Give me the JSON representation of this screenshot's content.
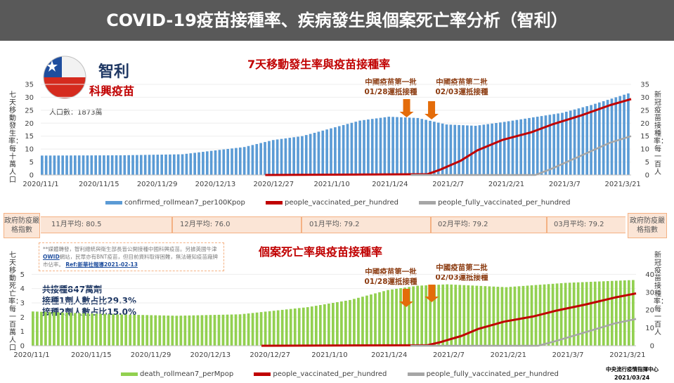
{
  "title": "COVID-19疫苗接種率、疾病發生與個案死亡率分析（智利）",
  "country": {
    "name": "智利",
    "vaccine": "科興疫苗",
    "population": "人口數：1873萬",
    "flag_icon": "chile-flag-icon"
  },
  "colors": {
    "cases": "#5b9bd5",
    "deaths": "#92d050",
    "vacc": "#c00000",
    "full": "#a6a6a6",
    "policy_fill": "#fbe5d6",
    "policy_border": "#f4b183"
  },
  "annotations": {
    "first_batch": [
      "中國疫苗第一批",
      "01/28運抵接種"
    ],
    "second_batch": [
      "中國疫苗第二批",
      "02/03運抵接種"
    ]
  },
  "policy": {
    "label_left": "政府防疫嚴格指數",
    "label_right": "政府防疫嚴格指數",
    "months": [
      "11月平均: 80.5",
      "12月平均: 76.0",
      "01月平均: 79.2",
      "02月平均: 79.2",
      "03月平均: 79.2"
    ]
  },
  "note": {
    "pre": "**媒體轉發，智利總統與衛生部長皆公開接種中國科興疫苗。另據英國牛津",
    "link": "OWID",
    "post": "網站，民眾亦有BNT疫苗，但目前資料取得困難，無法確知疫苗廠牌市佔率。",
    "source": "Ref:新華社報導2021-02-13"
  },
  "stats": [
    "共接種847萬劑",
    "接種1劑人數占比29.3%",
    "接種2劑人數占比15.0%"
  ],
  "footer": {
    "org": "中央流行疫情指揮中心",
    "date": "2021/03/24"
  },
  "chart_data": [
    {
      "type": "bar",
      "title": "7天移動發生率與疫苗接種率",
      "ylabel_left": "七天移動發生率：每十萬人口",
      "ylabel_right": "新冠疫苗接種率：每一百人",
      "x_start": "2020-11-01",
      "x_end": "2021-03-23",
      "x_ticks": [
        "2020/11/1",
        "2020/11/15",
        "2020/11/29",
        "2020/12/13",
        "2020/12/27",
        "2021/1/10",
        "2021/1/24",
        "2021/2/7",
        "2021/2/21",
        "2021/3/7",
        "2021/3/21"
      ],
      "ylim_left": [
        0,
        35
      ],
      "yticks_left": [
        0,
        5,
        10,
        15,
        20,
        25,
        30,
        35
      ],
      "ylim_right": [
        0,
        35
      ],
      "yticks_right": [
        0,
        5,
        10,
        15,
        20,
        25,
        30,
        35
      ],
      "bar_series": {
        "name": "confirmed_rollmean7_per100Kpop",
        "points": [
          [
            "2020-11-01",
            7.5
          ],
          [
            "2020-11-20",
            7.6
          ],
          [
            "2020-12-05",
            8.0
          ],
          [
            "2020-12-13",
            9.5
          ],
          [
            "2020-12-20",
            10.8
          ],
          [
            "2020-12-27",
            13.5
          ],
          [
            "2021-01-03",
            15.0
          ],
          [
            "2021-01-10",
            18.0
          ],
          [
            "2021-01-17",
            21.0
          ],
          [
            "2021-01-24",
            22.5
          ],
          [
            "2021-01-31",
            22.0
          ],
          [
            "2021-02-07",
            19.5
          ],
          [
            "2021-02-14",
            19.0
          ],
          [
            "2021-02-21",
            20.5
          ],
          [
            "2021-03-01",
            22.5
          ],
          [
            "2021-03-07",
            24.0
          ],
          [
            "2021-03-14",
            27.0
          ],
          [
            "2021-03-23",
            31.5
          ]
        ]
      },
      "line_series": [
        {
          "name": "people_vaccinated_per_hundred",
          "points": [
            [
              "2020-12-25",
              0
            ],
            [
              "2021-02-02",
              0.3
            ],
            [
              "2021-02-05",
              2.0
            ],
            [
              "2021-02-10",
              5.5
            ],
            [
              "2021-02-14",
              9.5
            ],
            [
              "2021-02-20",
              13.5
            ],
            [
              "2021-02-27",
              16.5
            ],
            [
              "2021-03-04",
              19.5
            ],
            [
              "2021-03-11",
              23.0
            ],
            [
              "2021-03-18",
              27.0
            ],
            [
              "2021-03-23",
              29.3
            ]
          ]
        },
        {
          "name": "people_fully_vaccinated_per_hundred",
          "points": [
            [
              "2021-01-29",
              0
            ],
            [
              "2021-02-28",
              0
            ],
            [
              "2021-03-04",
              2.5
            ],
            [
              "2021-03-11",
              7.5
            ],
            [
              "2021-03-18",
              12.5
            ],
            [
              "2021-03-23",
              15.0
            ]
          ]
        }
      ]
    },
    {
      "type": "bar",
      "title": "個案死亡率與疫苗接種率",
      "ylabel_left": "七天移動死亡率：每一百萬人口",
      "ylabel_right": "新冠疫苗接種率：每一百人",
      "x_start": "2020-11-01",
      "x_end": "2021-03-23",
      "x_ticks": [
        "2020/11/1",
        "2020/11/15",
        "2020/11/29",
        "2020/12/13",
        "2020/12/27",
        "2021/1/10",
        "2021/1/24",
        "2021/2/7",
        "2021/2/21",
        "2021/3/7",
        "2021/3/21"
      ],
      "ylim_left": [
        0,
        6
      ],
      "yticks_left": [
        0,
        1,
        2,
        3,
        4,
        5
      ],
      "ylim_right": [
        0,
        48
      ],
      "yticks_right": [
        0,
        10,
        20,
        30,
        40
      ],
      "bar_series": {
        "name": "death_rollmean7_perMpop",
        "points": [
          [
            "2020-11-01",
            2.4
          ],
          [
            "2020-11-20",
            2.2
          ],
          [
            "2020-12-05",
            2.1
          ],
          [
            "2020-12-20",
            2.2
          ],
          [
            "2021-01-05",
            2.7
          ],
          [
            "2021-01-15",
            3.2
          ],
          [
            "2021-01-24",
            3.9
          ],
          [
            "2021-01-31",
            4.2
          ],
          [
            "2021-02-07",
            4.3
          ],
          [
            "2021-02-21",
            4.1
          ],
          [
            "2021-03-07",
            4.4
          ],
          [
            "2021-03-23",
            4.6
          ]
        ]
      },
      "line_series": [
        {
          "name": "people_vaccinated_per_hundred",
          "points": [
            [
              "2020-12-25",
              0
            ],
            [
              "2021-02-02",
              0.3
            ],
            [
              "2021-02-05",
              2.0
            ],
            [
              "2021-02-10",
              5.5
            ],
            [
              "2021-02-14",
              9.5
            ],
            [
              "2021-02-20",
              13.5
            ],
            [
              "2021-02-27",
              16.5
            ],
            [
              "2021-03-04",
              19.5
            ],
            [
              "2021-03-11",
              23.0
            ],
            [
              "2021-03-18",
              27.0
            ],
            [
              "2021-03-23",
              29.3
            ]
          ]
        },
        {
          "name": "people_fully_vaccinated_per_hundred",
          "points": [
            [
              "2021-01-29",
              0
            ],
            [
              "2021-02-28",
              0
            ],
            [
              "2021-03-04",
              2.5
            ],
            [
              "2021-03-11",
              7.5
            ],
            [
              "2021-03-18",
              12.5
            ],
            [
              "2021-03-23",
              15.0
            ]
          ]
        }
      ]
    }
  ]
}
